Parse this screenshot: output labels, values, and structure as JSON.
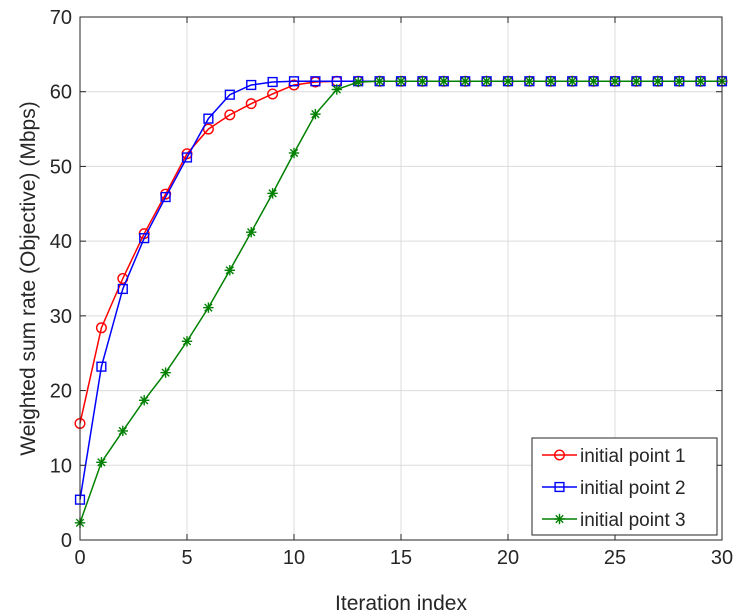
{
  "chart_data": {
    "type": "line",
    "title": "",
    "xlabel": "Iteration index",
    "ylabel": "Weighted sum rate (Objective) (Mbps)",
    "xlim": [
      0,
      30
    ],
    "ylim": [
      0,
      70
    ],
    "xticks": [
      0,
      5,
      10,
      15,
      20,
      25,
      30
    ],
    "yticks": [
      0,
      10,
      20,
      30,
      40,
      50,
      60,
      70
    ],
    "grid": true,
    "legend_position": "bottom-right",
    "x": [
      0,
      1,
      2,
      3,
      4,
      5,
      6,
      7,
      8,
      9,
      10,
      11,
      12,
      13,
      14,
      15,
      16,
      17,
      18,
      19,
      20,
      21,
      22,
      23,
      24,
      25,
      26,
      27,
      28,
      29,
      30
    ],
    "series": [
      {
        "name": "initial point 1",
        "color": "#ff0000",
        "marker": "circle",
        "values": [
          15.6,
          28.4,
          35.0,
          41.0,
          46.3,
          51.7,
          55.0,
          56.9,
          58.4,
          59.7,
          60.9,
          61.3,
          61.4,
          61.4,
          61.4,
          61.4,
          61.4,
          61.4,
          61.4,
          61.4,
          61.4,
          61.4,
          61.4,
          61.4,
          61.4,
          61.4,
          61.4,
          61.4,
          61.4,
          61.4,
          61.4
        ]
      },
      {
        "name": "initial point 2",
        "color": "#0000ff",
        "marker": "square",
        "values": [
          5.4,
          23.2,
          33.6,
          40.4,
          45.9,
          51.2,
          56.4,
          59.6,
          60.9,
          61.3,
          61.4,
          61.4,
          61.4,
          61.4,
          61.4,
          61.4,
          61.4,
          61.4,
          61.4,
          61.4,
          61.4,
          61.4,
          61.4,
          61.4,
          61.4,
          61.4,
          61.4,
          61.4,
          61.4,
          61.4,
          61.4
        ]
      },
      {
        "name": "initial point 3",
        "color": "#008000",
        "marker": "asterisk",
        "values": [
          2.3,
          10.4,
          14.6,
          18.7,
          22.4,
          26.6,
          31.1,
          36.1,
          41.2,
          46.4,
          51.8,
          57.0,
          60.3,
          61.3,
          61.4,
          61.4,
          61.4,
          61.4,
          61.4,
          61.4,
          61.4,
          61.4,
          61.4,
          61.4,
          61.4,
          61.4,
          61.4,
          61.4,
          61.4,
          61.4,
          61.4
        ]
      }
    ]
  }
}
